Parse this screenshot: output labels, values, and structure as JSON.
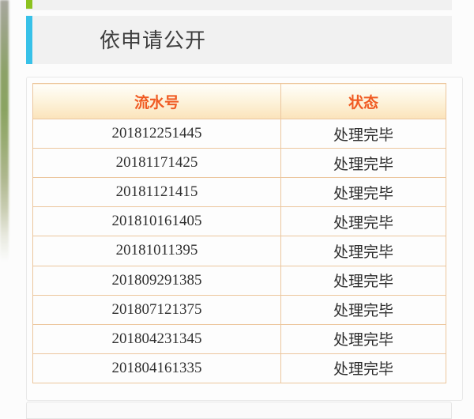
{
  "section": {
    "title": "依申请公开"
  },
  "table": {
    "columns": [
      "流水号",
      "状态"
    ],
    "rows": [
      {
        "serial": "201812251445",
        "status": "处理完毕"
      },
      {
        "serial": "20181171425",
        "status": "处理完毕"
      },
      {
        "serial": "20181121415",
        "status": "处理完毕"
      },
      {
        "serial": "201810161405",
        "status": "处理完毕"
      },
      {
        "serial": "20181011395",
        "status": "处理完毕"
      },
      {
        "serial": "201809291385",
        "status": "处理完毕"
      },
      {
        "serial": "201807121375",
        "status": "处理完毕"
      },
      {
        "serial": "201804231345",
        "status": "处理完毕"
      },
      {
        "serial": "201804161335",
        "status": "处理完毕"
      }
    ]
  },
  "colors": {
    "accent_green": "#8cc21f",
    "accent_cyan": "#38c1e8",
    "header_orange": "#f05a22"
  }
}
